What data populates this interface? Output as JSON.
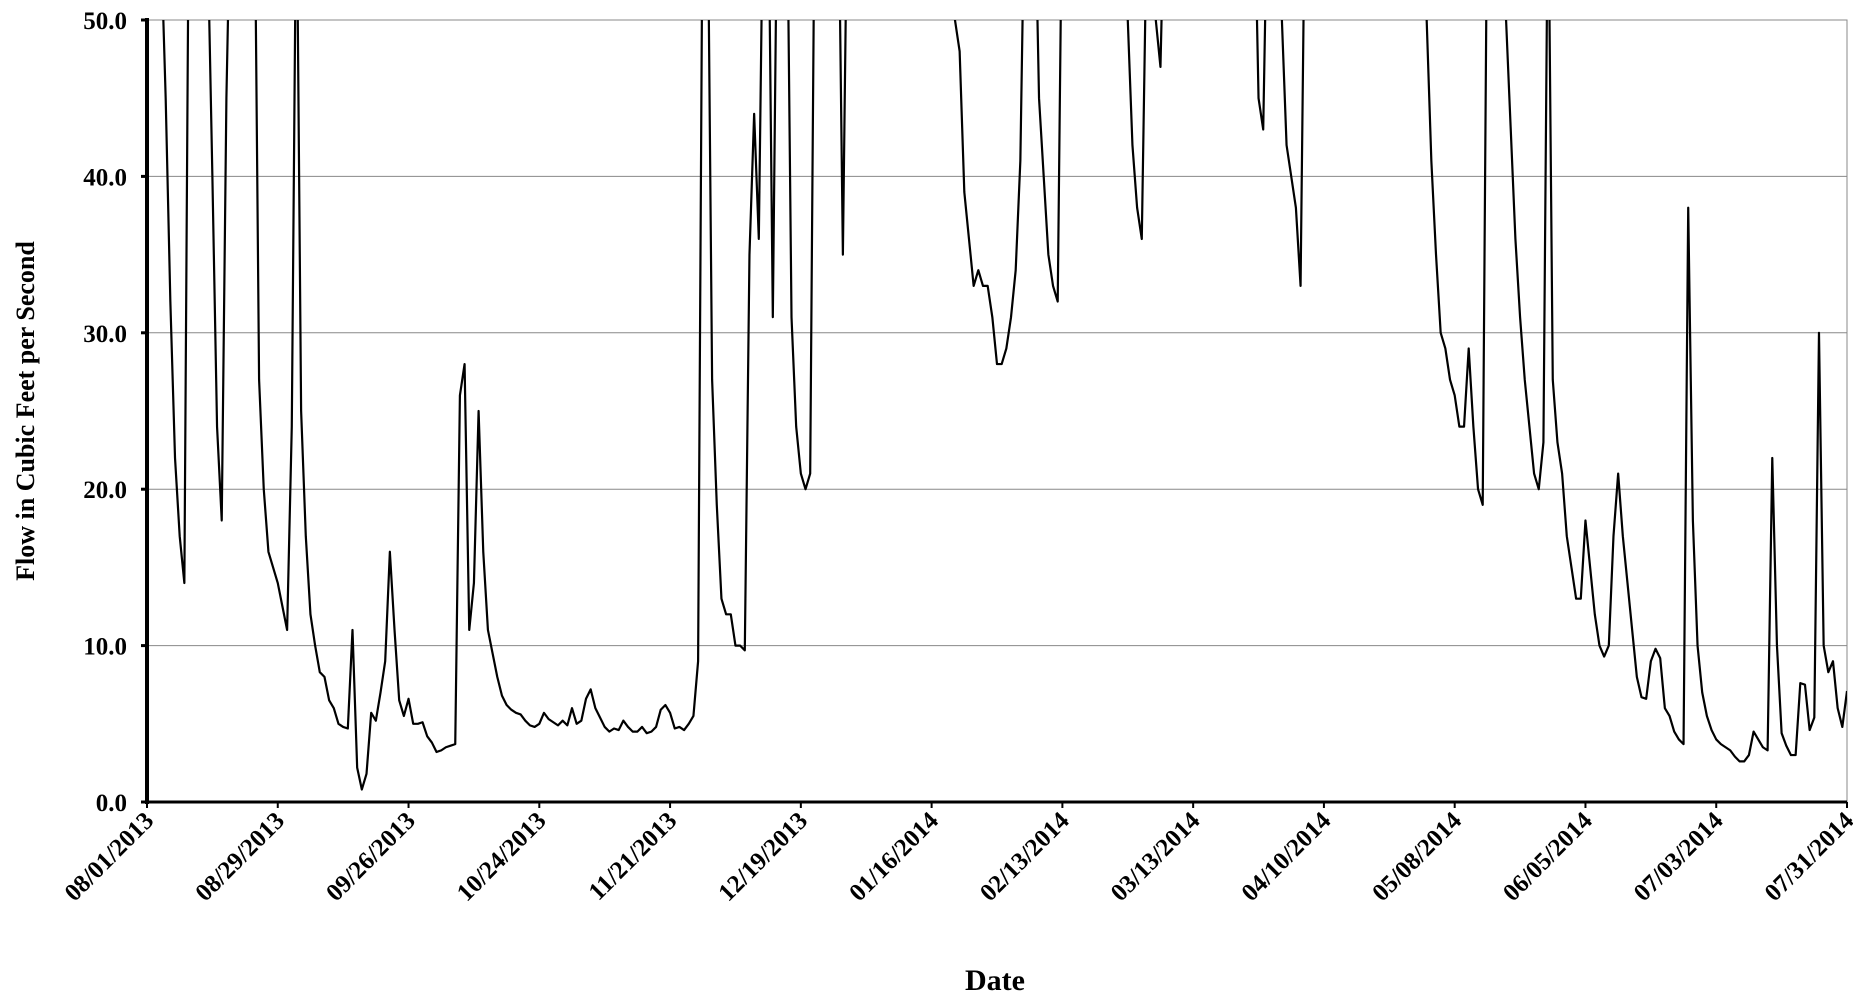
{
  "chart_data": {
    "type": "line",
    "x_label": "Date",
    "y_label": "Flow in Cubic Feet per Second",
    "color": "#000000",
    "grid": true,
    "xlim": [
      "08/01/2013",
      "07/31/2014"
    ],
    "xticks": [
      "08/01/2013",
      "08/29/2013",
      "09/26/2013",
      "10/24/2013",
      "11/21/2013",
      "12/19/2013",
      "01/16/2014",
      "02/13/2014",
      "03/13/2014",
      "04/10/2014",
      "05/08/2014",
      "06/05/2014",
      "07/03/2014",
      "07/31/2014"
    ],
    "ylim": [
      0,
      50
    ],
    "yticks": [
      {
        "value": 0,
        "label": "0.0"
      },
      {
        "value": 10,
        "label": "10.0"
      },
      {
        "value": 20,
        "label": "20.0"
      },
      {
        "value": 30,
        "label": "30.0"
      },
      {
        "value": 40,
        "label": "40.0"
      },
      {
        "value": 50,
        "label": "50.0"
      }
    ],
    "x": [
      "08/01/2013",
      "08/04/2013",
      "08/05/2013",
      "08/06/2013",
      "08/07/2013",
      "08/08/2013",
      "08/09/2013",
      "08/10/2013",
      "08/14/2013",
      "08/15/2013",
      "08/16/2013",
      "08/17/2013",
      "08/18/2013",
      "08/19/2013",
      "08/24/2013",
      "08/25/2013",
      "08/26/2013",
      "08/27/2013",
      "08/28/2013",
      "08/29/2013",
      "08/30/2013",
      "08/31/2013",
      "09/01/2013",
      "09/02/2013",
      "09/03/2013",
      "09/04/2013",
      "09/05/2013",
      "09/06/2013",
      "09/07/2013",
      "09/08/2013",
      "09/09/2013",
      "09/10/2013",
      "09/11/2013",
      "09/12/2013",
      "09/13/2013",
      "09/14/2013",
      "09/15/2013",
      "09/16/2013",
      "09/17/2013",
      "09/18/2013",
      "09/19/2013",
      "09/20/2013",
      "09/21/2013",
      "09/22/2013",
      "09/23/2013",
      "09/24/2013",
      "09/25/2013",
      "09/26/2013",
      "09/27/2013",
      "09/28/2013",
      "09/29/2013",
      "09/30/2013",
      "10/01/2013",
      "10/02/2013",
      "10/03/2013",
      "10/04/2013",
      "10/05/2013",
      "10/06/2013",
      "10/07/2013",
      "10/08/2013",
      "10/09/2013",
      "10/10/2013",
      "10/11/2013",
      "10/12/2013",
      "10/13/2013",
      "10/14/2013",
      "10/15/2013",
      "10/16/2013",
      "10/17/2013",
      "10/18/2013",
      "10/19/2013",
      "10/20/2013",
      "10/21/2013",
      "10/22/2013",
      "10/23/2013",
      "10/24/2013",
      "10/25/2013",
      "10/26/2013",
      "10/27/2013",
      "10/28/2013",
      "10/29/2013",
      "10/30/2013",
      "10/31/2013",
      "11/01/2013",
      "11/02/2013",
      "11/03/2013",
      "11/04/2013",
      "11/05/2013",
      "11/06/2013",
      "11/07/2013",
      "11/08/2013",
      "11/09/2013",
      "11/10/2013",
      "11/11/2013",
      "11/12/2013",
      "11/13/2013",
      "11/14/2013",
      "11/15/2013",
      "11/16/2013",
      "11/17/2013",
      "11/18/2013",
      "11/19/2013",
      "11/20/2013",
      "11/21/2013",
      "11/22/2013",
      "11/23/2013",
      "11/24/2013",
      "11/25/2013",
      "11/26/2013",
      "11/27/2013",
      "11/28/2013",
      "11/29/2013",
      "11/30/2013",
      "12/01/2013",
      "12/02/2013",
      "12/03/2013",
      "12/04/2013",
      "12/05/2013",
      "12/06/2013",
      "12/07/2013",
      "12/08/2013",
      "12/09/2013",
      "12/10/2013",
      "12/11/2013",
      "12/12/2013",
      "12/13/2013",
      "12/14/2013",
      "12/16/2013",
      "12/17/2013",
      "12/18/2013",
      "12/19/2013",
      "12/20/2013",
      "12/21/2013",
      "12/22/2013",
      "12/27/2013",
      "12/28/2013",
      "12/29/2013",
      "01/20/2014",
      "01/21/2014",
      "01/22/2014",
      "01/23/2014",
      "01/24/2014",
      "01/25/2014",
      "01/26/2014",
      "01/27/2014",
      "01/28/2014",
      "01/29/2014",
      "01/30/2014",
      "01/31/2014",
      "02/01/2014",
      "02/02/2014",
      "02/03/2014",
      "02/04/2014",
      "02/05/2014",
      "02/07/2014",
      "02/08/2014",
      "02/09/2014",
      "02/10/2014",
      "02/11/2014",
      "02/12/2014",
      "02/13/2014",
      "02/26/2014",
      "02/27/2014",
      "02/28/2014",
      "03/01/2014",
      "03/02/2014",
      "03/03/2014",
      "03/04/2014",
      "03/05/2014",
      "03/06/2014",
      "03/07/2014",
      "03/26/2014",
      "03/27/2014",
      "03/28/2014",
      "03/29/2014",
      "03/31/2014",
      "04/01/2014",
      "04/02/2014",
      "04/03/2014",
      "04/04/2014",
      "04/05/2014",
      "04/06/2014",
      "05/01/2014",
      "05/02/2014",
      "05/03/2014",
      "05/04/2014",
      "05/05/2014",
      "05/06/2014",
      "05/07/2014",
      "05/08/2014",
      "05/09/2014",
      "05/10/2014",
      "05/11/2014",
      "05/12/2014",
      "05/13/2014",
      "05/14/2014",
      "05/15/2014",
      "05/18/2014",
      "05/19/2014",
      "05/20/2014",
      "05/21/2014",
      "05/22/2014",
      "05/23/2014",
      "05/24/2014",
      "05/25/2014",
      "05/26/2014",
      "05/27/2014",
      "05/28/2014",
      "05/29/2014",
      "05/30/2014",
      "05/31/2014",
      "06/01/2014",
      "06/02/2014",
      "06/03/2014",
      "06/04/2014",
      "06/05/2014",
      "06/06/2014",
      "06/07/2014",
      "06/08/2014",
      "06/09/2014",
      "06/10/2014",
      "06/11/2014",
      "06/12/2014",
      "06/13/2014",
      "06/14/2014",
      "06/15/2014",
      "06/16/2014",
      "06/17/2014",
      "06/18/2014",
      "06/19/2014",
      "06/20/2014",
      "06/21/2014",
      "06/22/2014",
      "06/23/2014",
      "06/24/2014",
      "06/25/2014",
      "06/26/2014",
      "06/27/2014",
      "06/28/2014",
      "06/29/2014",
      "06/30/2014",
      "07/01/2014",
      "07/02/2014",
      "07/03/2014",
      "07/04/2014",
      "07/05/2014",
      "07/06/2014",
      "07/07/2014",
      "07/08/2014",
      "07/09/2014",
      "07/10/2014",
      "07/11/2014",
      "07/12/2014",
      "07/13/2014",
      "07/14/2014",
      "07/15/2014",
      "07/16/2014",
      "07/17/2014",
      "07/18/2014",
      "07/19/2014",
      "07/20/2014",
      "07/21/2014",
      "07/22/2014",
      "07/23/2014",
      "07/24/2014",
      "07/25/2014",
      "07/26/2014",
      "07/27/2014",
      "07/28/2014",
      "07/29/2014",
      "07/30/2014",
      "07/31/2014"
    ],
    "values": [
      60,
      55,
      45,
      32,
      22,
      17,
      14,
      60,
      55,
      40,
      24,
      18,
      45,
      60,
      60,
      27,
      20,
      16,
      15,
      14,
      12.5,
      11,
      24,
      60,
      25,
      17,
      12,
      10,
      8.3,
      8,
      6.5,
      6,
      5,
      4.8,
      4.7,
      11,
      2.2,
      0.8,
      1.8,
      5.7,
      5.2,
      7,
      9,
      16,
      11,
      6.5,
      5.5,
      6.6,
      5,
      5,
      5.1,
      4.2,
      3.8,
      3.2,
      3.3,
      3.5,
      3.6,
      3.7,
      26,
      28,
      11,
      14,
      25,
      16,
      11,
      9.5,
      8,
      6.8,
      6.2,
      5.9,
      5.7,
      5.6,
      5.2,
      4.9,
      4.8,
      5,
      5.7,
      5.3,
      5.1,
      4.9,
      5.2,
      4.9,
      6,
      5,
      5.2,
      6.6,
      7.2,
      6,
      5.4,
      4.8,
      4.5,
      4.7,
      4.6,
      5.2,
      4.8,
      4.5,
      4.5,
      4.8,
      4.4,
      4.5,
      4.8,
      5.9,
      6.2,
      5.7,
      4.7,
      4.8,
      4.6,
      5,
      5.5,
      9,
      60,
      60,
      27,
      19,
      13,
      12,
      12,
      10,
      10,
      9.7,
      35,
      44,
      36,
      60,
      60,
      31,
      60,
      60,
      31,
      24,
      21,
      20,
      21,
      60,
      60,
      35,
      60,
      60,
      50,
      48,
      39,
      36,
      33,
      34,
      33,
      33,
      31,
      28,
      28,
      29,
      31,
      34,
      41,
      60,
      60,
      45,
      40,
      35,
      33,
      32,
      60,
      60,
      50,
      42,
      38,
      36,
      55,
      60,
      50,
      47,
      60,
      60,
      45,
      43,
      60,
      60,
      50,
      42,
      40,
      38,
      33,
      60,
      60,
      50,
      41,
      35,
      30,
      29,
      27,
      26,
      24,
      24,
      29,
      24,
      20,
      19,
      60,
      60,
      50,
      43,
      36,
      31,
      27,
      24,
      21,
      20,
      23,
      60,
      27,
      23,
      21,
      17,
      15,
      13,
      13,
      18,
      15,
      12,
      10,
      9.3,
      10,
      17,
      21,
      17,
      14,
      11,
      8,
      6.7,
      6.6,
      9,
      9.8,
      9.2,
      6,
      5.5,
      4.5,
      4,
      3.7,
      38,
      18,
      10,
      7,
      5.5,
      4.6,
      4,
      3.7,
      3.5,
      3.3,
      2.9,
      2.6,
      2.6,
      3,
      4.5,
      4,
      3.5,
      3.3,
      22,
      10,
      4.4,
      3.6,
      3,
      3,
      7.6,
      7.5,
      4.6,
      5.4,
      30,
      10,
      8.3,
      9,
      6,
      4.8,
      7.1
    ]
  }
}
